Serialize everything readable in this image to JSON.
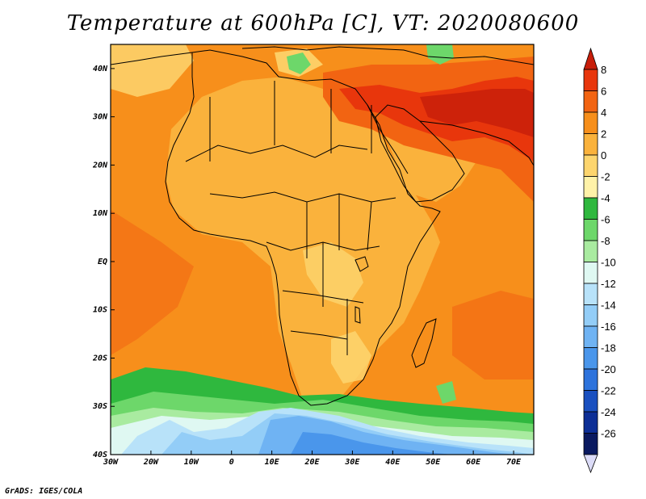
{
  "title": "Temperature at 600hPa [C], VT: 2020080600",
  "credit": "GrADS: IGES/COLA",
  "map": {
    "lon_range": [
      -30,
      75
    ],
    "lat_range": [
      -40,
      45
    ],
    "lon_ticks": [
      {
        "value": -30,
        "label": "30W"
      },
      {
        "value": -20,
        "label": "20W"
      },
      {
        "value": -10,
        "label": "10W"
      },
      {
        "value": 0,
        "label": "0"
      },
      {
        "value": 10,
        "label": "10E"
      },
      {
        "value": 20,
        "label": "20E"
      },
      {
        "value": 30,
        "label": "30E"
      },
      {
        "value": 40,
        "label": "40E"
      },
      {
        "value": 50,
        "label": "50E"
      },
      {
        "value": 60,
        "label": "60E"
      },
      {
        "value": 70,
        "label": "70E"
      }
    ],
    "lat_ticks": [
      {
        "value": 40,
        "label": "40N"
      },
      {
        "value": 30,
        "label": "30N"
      },
      {
        "value": 20,
        "label": "20N"
      },
      {
        "value": 10,
        "label": "10N"
      },
      {
        "value": 0,
        "label": "EQ"
      },
      {
        "value": -10,
        "label": "10S"
      },
      {
        "value": -20,
        "label": "20S"
      },
      {
        "value": -30,
        "label": "30S"
      },
      {
        "value": -40,
        "label": "40S"
      }
    ]
  },
  "colorbar": {
    "labels": [
      "8",
      "6",
      "4",
      "2",
      "0",
      "-2",
      "-4",
      "-6",
      "-8",
      "-10",
      "-12",
      "-14",
      "-16",
      "-18",
      "-20",
      "-22",
      "-24",
      "-26"
    ],
    "colors": [
      "#c81e0a",
      "#e8360c",
      "#f26412",
      "#f78f1b",
      "#fab23c",
      "#fdd56e",
      "#fff2a8",
      "#2fb83e",
      "#6dd76a",
      "#a9eba0",
      "#dff8f2",
      "#b8e2f9",
      "#93cdf7",
      "#6fb3f3",
      "#4a96eb",
      "#2d73dc",
      "#1a50c0",
      "#0d2f96",
      "#0a1a60"
    ],
    "top_arrow_color": "#c81e0a",
    "bottom_arrow_color": "#dcdcf8"
  },
  "fields": {
    "ocean_base": "#f78f1b",
    "land_base": "#fab23c",
    "hot_core": "#c81e0a",
    "hot": "#e8360c",
    "warm": "#f26412",
    "mild": "#fdd56e",
    "cool_green": "#2fb83e",
    "cool_light_green": "#6dd76a",
    "pale_green": "#a9eba0",
    "pale_cyan": "#dff8f2",
    "light_blue": "#b8e2f9",
    "sky_blue": "#93cdf7",
    "mid_blue": "#6fb3f3",
    "deep_blue": "#4a96eb"
  }
}
